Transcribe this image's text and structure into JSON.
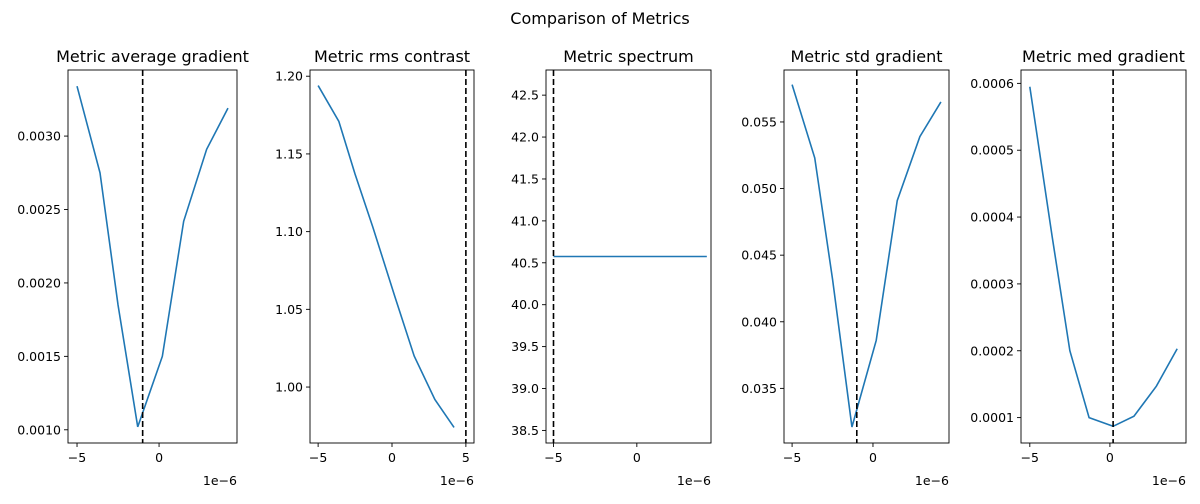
{
  "figure": {
    "title": "Comparison of Metrics"
  },
  "chart_data": [
    {
      "type": "line",
      "title": "Metric average gradient",
      "xlabel": "",
      "ylabel": "",
      "x_offset_label": "1e−6",
      "x": [
        -5,
        -3.6,
        -2.5,
        -1.3,
        0.2,
        1.5,
        2.9,
        4.2
      ],
      "series": [
        {
          "values": [
            0.00334,
            0.00275,
            0.00185,
            0.00102,
            0.0015,
            0.00242,
            0.00291,
            0.00319
          ]
        }
      ],
      "vline": -1,
      "xlim": [
        -5.55,
        4.75
      ],
      "ylim": [
        0.00091,
        0.00345
      ],
      "xticks": [
        -5,
        0
      ],
      "yticks": [
        0.001,
        0.0015,
        0.002,
        0.0025,
        0.003
      ],
      "ytick_labels": [
        "0.0010",
        "0.0015",
        "0.0020",
        "0.0025",
        "0.0030"
      ],
      "color": "#1f77b4"
    },
    {
      "type": "line",
      "title": "Metric rms contrast",
      "xlabel": "",
      "ylabel": "",
      "x_offset_label": "1e−6",
      "x": [
        -5,
        -3.6,
        -2.5,
        -1.3,
        0.2,
        1.5,
        2.9,
        4.2
      ],
      "series": [
        {
          "values": [
            1.194,
            1.171,
            1.137,
            1.103,
            1.058,
            1.02,
            0.992,
            0.974
          ]
        }
      ],
      "vline": 5,
      "xlim": [
        -5.55,
        5.55
      ],
      "ylim": [
        0.964,
        1.204
      ],
      "xticks": [
        -5,
        0,
        5
      ],
      "yticks": [
        1.0,
        1.05,
        1.1,
        1.15,
        1.2
      ],
      "ytick_labels": [
        "1.00",
        "1.05",
        "1.10",
        "1.15",
        "1.20"
      ],
      "color": "#1f77b4"
    },
    {
      "type": "line",
      "title": "Metric spectrum",
      "xlabel": "",
      "ylabel": "",
      "x_offset_label": "1e−6",
      "x": [
        -5,
        -3.6,
        -2.5,
        -1.3,
        0.2,
        1.5,
        2.9,
        4.2
      ],
      "series": [
        {
          "values": [
            40.575,
            40.575,
            40.575,
            40.575,
            40.575,
            40.575,
            40.575,
            40.575
          ]
        }
      ],
      "vline": -5,
      "xlim": [
        -5.45,
        4.45
      ],
      "ylim": [
        38.35,
        42.8
      ],
      "xticks": [
        -5,
        0
      ],
      "yticks": [
        38.5,
        39.0,
        39.5,
        40.0,
        40.5,
        41.0,
        41.5,
        42.0,
        42.5
      ],
      "ytick_labels": [
        "38.5",
        "39.0",
        "39.5",
        "40.0",
        "40.5",
        "41.0",
        "41.5",
        "42.0",
        "42.5"
      ],
      "color": "#1f77b4"
    },
    {
      "type": "line",
      "title": "Metric std gradient",
      "xlabel": "",
      "ylabel": "",
      "x_offset_label": "1e−6",
      "x": [
        -5,
        -3.6,
        -2.5,
        -1.3,
        0.2,
        1.5,
        2.9,
        4.2
      ],
      "series": [
        {
          "values": [
            0.0578,
            0.0523,
            0.0432,
            0.0321,
            0.0386,
            0.0491,
            0.0539,
            0.0565
          ]
        }
      ],
      "vline": -1,
      "xlim": [
        -5.5,
        4.7
      ],
      "ylim": [
        0.0309,
        0.0589
      ],
      "xticks": [
        -5,
        0
      ],
      "yticks": [
        0.035,
        0.04,
        0.045,
        0.05,
        0.055
      ],
      "ytick_labels": [
        "0.035",
        "0.040",
        "0.045",
        "0.050",
        "0.055"
      ],
      "color": "#1f77b4"
    },
    {
      "type": "line",
      "title": "Metric med gradient",
      "xlabel": "",
      "ylabel": "",
      "x_offset_label": "1e−6",
      "x": [
        -5,
        -3.6,
        -2.5,
        -1.3,
        0.2,
        1.5,
        2.9,
        4.2
      ],
      "series": [
        {
          "values": [
            0.000595,
            0.00037,
            0.0002,
            0.0001,
            8.7e-05,
            0.000102,
            0.000147,
            0.000203
          ]
        }
      ],
      "vline": 0.2,
      "xlim": [
        -5.55,
        4.75
      ],
      "ylim": [
        6.2e-05,
        0.00062
      ],
      "xticks": [
        -5,
        0
      ],
      "yticks": [
        0.0001,
        0.0002,
        0.0003,
        0.0004,
        0.0005,
        0.0006
      ],
      "ytick_labels": [
        "0.0001",
        "0.0002",
        "0.0003",
        "0.0004",
        "0.0005",
        "0.0006"
      ],
      "color": "#1f77b4"
    }
  ]
}
